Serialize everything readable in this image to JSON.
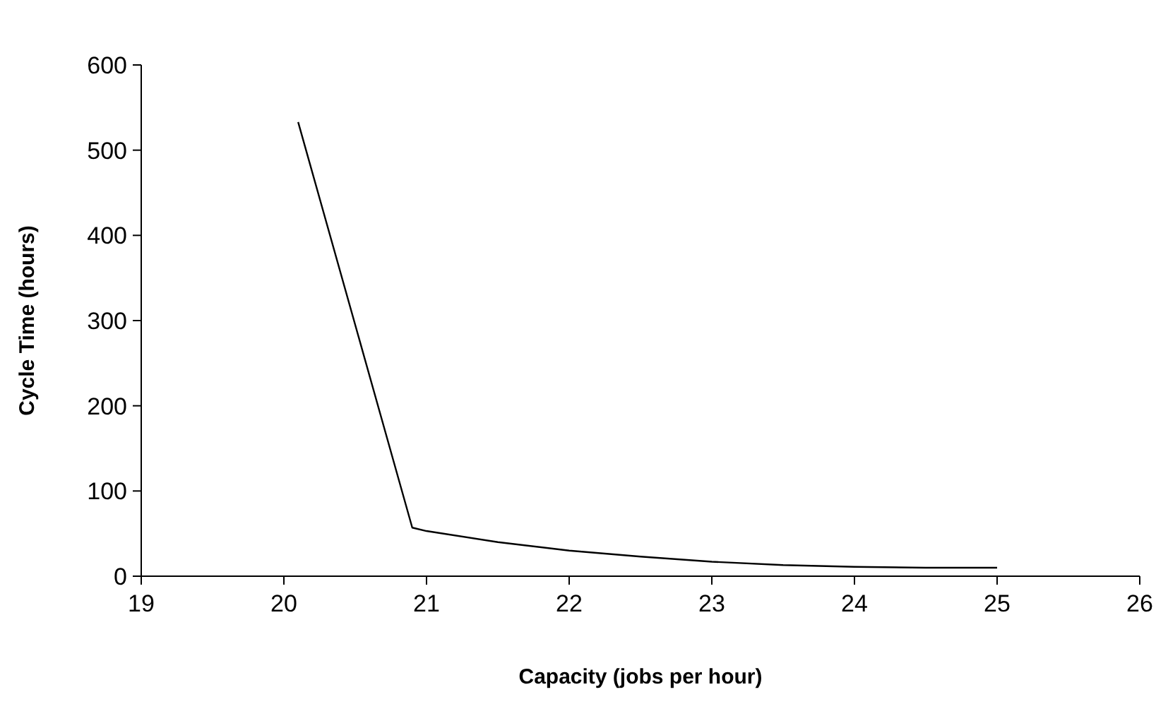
{
  "chart_data": {
    "type": "line",
    "xlabel": "Capacity (jobs per hour)",
    "ylabel": "Cycle Time (hours)",
    "series": [
      {
        "color": "#000000",
        "x": [
          20.1,
          20.9,
          21,
          21.5,
          22,
          22.5,
          23,
          23.5,
          24,
          24.5,
          25
        ],
        "values": [
          533,
          57,
          53,
          40,
          30,
          23,
          17,
          13,
          11,
          10,
          10
        ]
      }
    ],
    "xlim": [
      19,
      26
    ],
    "xticks": [
      19,
      20,
      21,
      22,
      23,
      24,
      25,
      26
    ],
    "ylim": [
      0,
      600
    ],
    "yticks": [
      0,
      100,
      200,
      300,
      400,
      500,
      600
    ],
    "grid": false,
    "marker": "none",
    "line_style": "solid"
  }
}
